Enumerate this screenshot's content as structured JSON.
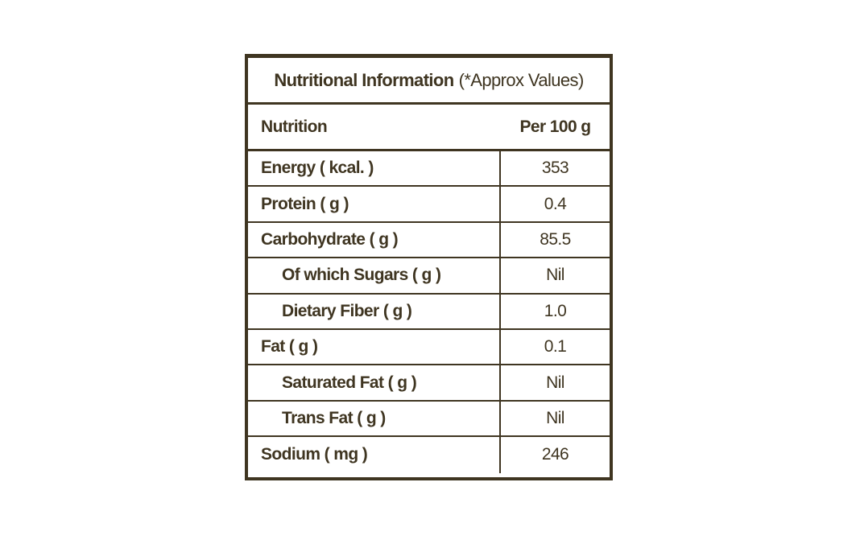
{
  "table": {
    "title": "Nutritional Information",
    "title_note": "(*Approx Values)",
    "header": {
      "name": "Nutrition",
      "value": "Per 100 g"
    },
    "rows": [
      {
        "name": "Energy ( kcal. )",
        "value": "353",
        "sub": false
      },
      {
        "name": "Protein ( g )",
        "value": "0.4",
        "sub": false
      },
      {
        "name": "Carbohydrate ( g )",
        "value": "85.5",
        "sub": false
      },
      {
        "name": "Of which Sugars ( g )",
        "value": "Nil",
        "sub": true
      },
      {
        "name": "Dietary Fiber ( g )",
        "value": "1.0",
        "sub": true
      },
      {
        "name": "Fat ( g )",
        "value": "0.1",
        "sub": false
      },
      {
        "name": "Saturated Fat ( g )",
        "value": "Nil",
        "sub": true
      },
      {
        "name": "Trans Fat ( g )",
        "value": "Nil",
        "sub": true
      },
      {
        "name": "Sodium ( mg )",
        "value": "246",
        "sub": false
      }
    ]
  },
  "colors": {
    "text": "#3f3521",
    "border": "#3f3521",
    "background": "#ffffff"
  }
}
